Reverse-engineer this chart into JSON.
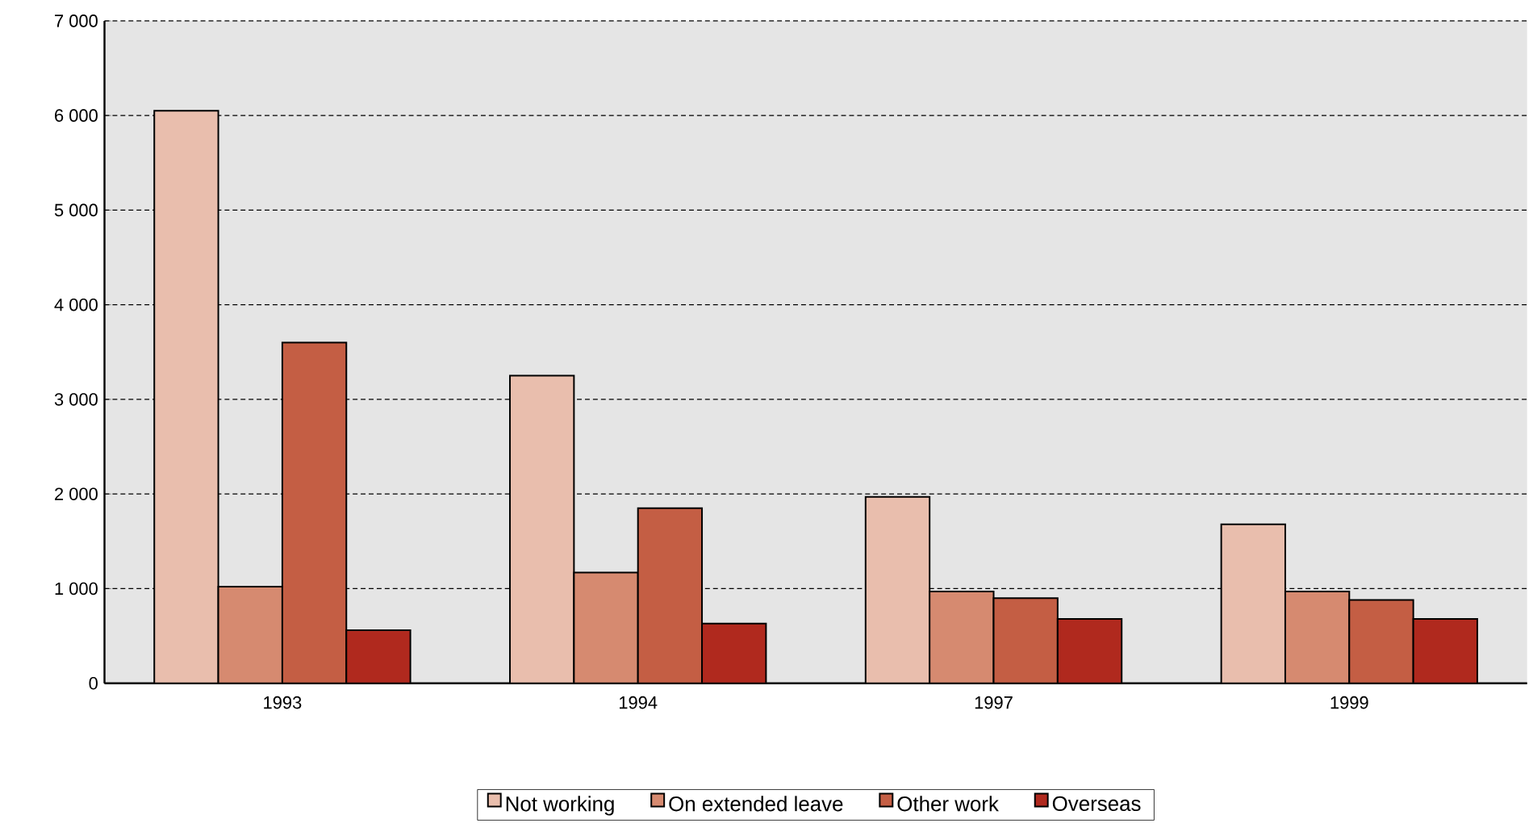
{
  "chart_data": {
    "type": "bar",
    "categories": [
      "1993",
      "1994",
      "1997",
      "1999"
    ],
    "series": [
      {
        "name": "Not working",
        "color": "#e9bead",
        "values": [
          6050,
          3250,
          1970,
          1680
        ]
      },
      {
        "name": "On extended leave",
        "color": "#d68a70",
        "values": [
          1020,
          1170,
          970,
          970
        ]
      },
      {
        "name": "Other work",
        "color": "#c45e44",
        "values": [
          3600,
          1850,
          900,
          880
        ]
      },
      {
        "name": "Overseas",
        "color": "#b0291e",
        "values": [
          560,
          630,
          680,
          680
        ]
      }
    ],
    "ylim": [
      0,
      7000
    ],
    "yticks": [
      {
        "value": 0,
        "label": "0"
      },
      {
        "value": 1000,
        "label": "1 000"
      },
      {
        "value": 2000,
        "label": "2 000"
      },
      {
        "value": 3000,
        "label": "3 000"
      },
      {
        "value": 4000,
        "label": "4 000"
      },
      {
        "value": 5000,
        "label": "5 000"
      },
      {
        "value": 6000,
        "label": "6 000"
      },
      {
        "value": 7000,
        "label": "7 000"
      }
    ],
    "grid": "y",
    "legend": "bottom"
  }
}
